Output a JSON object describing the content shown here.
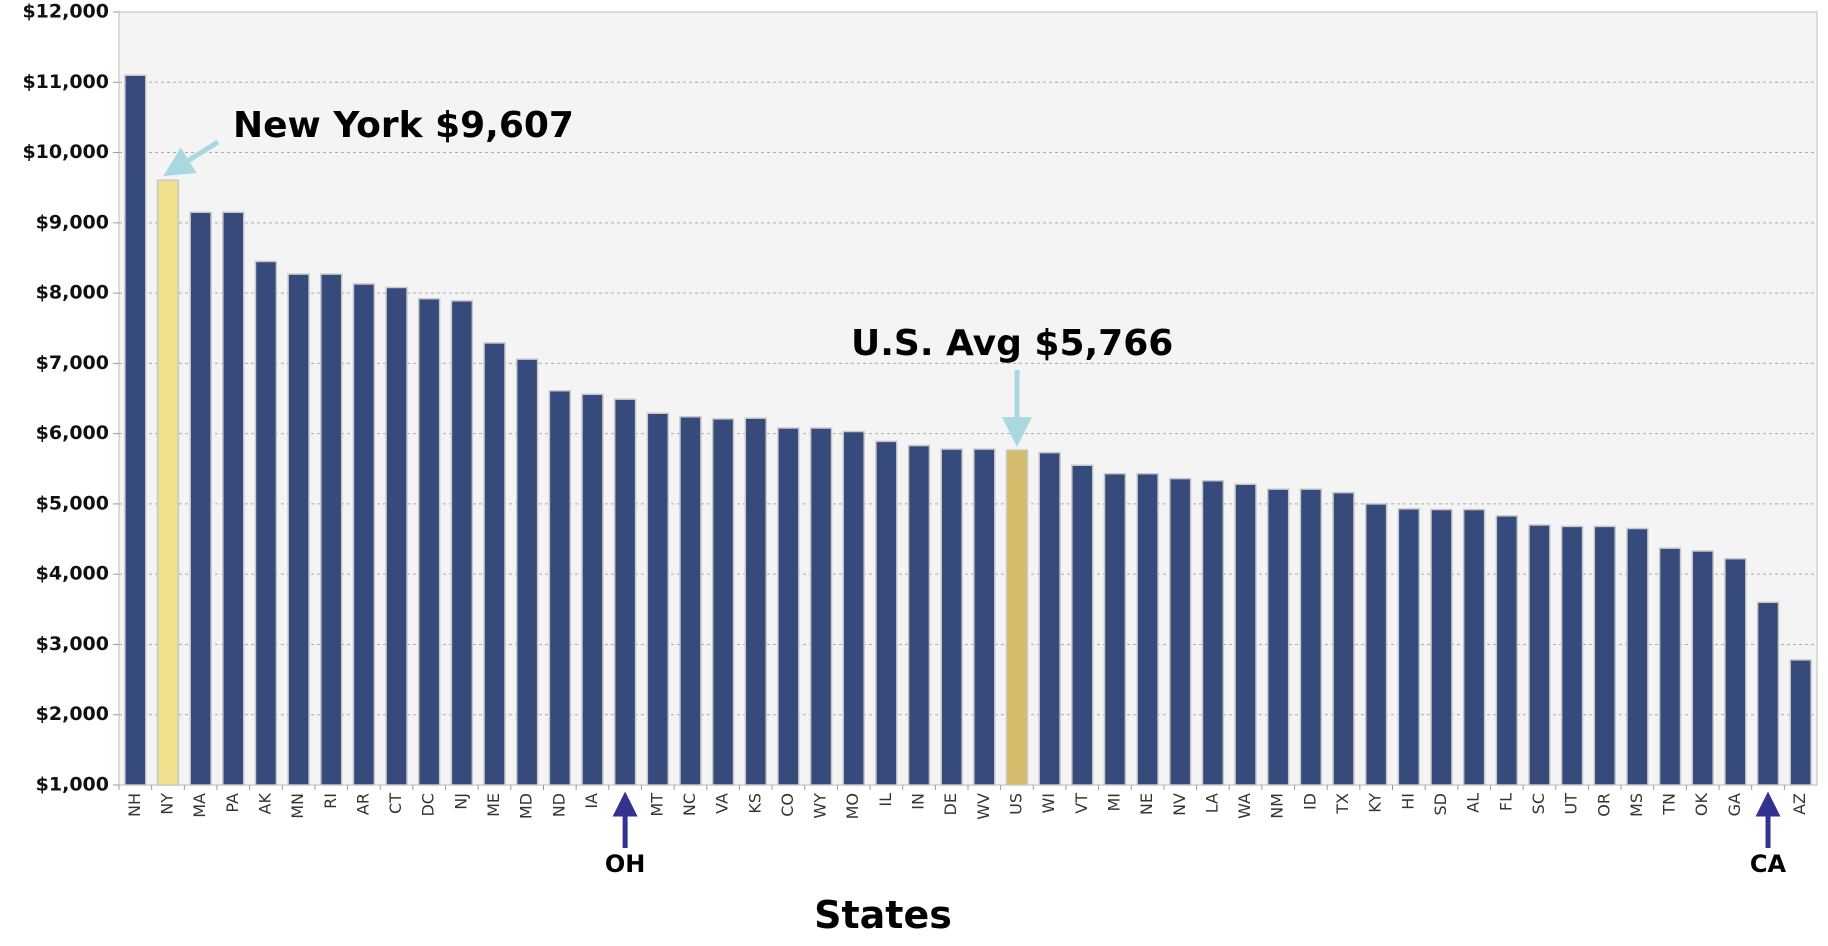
{
  "chart_data": {
    "type": "bar",
    "x_label": "States",
    "categories": [
      "NH",
      "NY",
      "MA",
      "PA",
      "AK",
      "MN",
      "RI",
      "AR",
      "CT",
      "DC",
      "NJ",
      "ME",
      "MD",
      "ND",
      "IA",
      null,
      "MT",
      "NC",
      "VA",
      "KS",
      "CO",
      "WY",
      "MO",
      "IL",
      "IN",
      "DE",
      "WV",
      "US",
      "WI",
      "VT",
      "MI",
      "NE",
      "NV",
      "LA",
      "WA",
      "NM",
      "ID",
      "TX",
      "KY",
      "HI",
      "SD",
      "AL",
      "FL",
      "SC",
      "UT",
      "OR",
      "MS",
      "TN",
      "OK",
      "GA",
      null,
      "AZ"
    ],
    "values": [
      11100,
      9607,
      9150,
      9150,
      8450,
      8270,
      8270,
      8130,
      8080,
      7920,
      7890,
      7290,
      7060,
      6610,
      6560,
      6490,
      6290,
      6240,
      6210,
      6220,
      6080,
      6080,
      6030,
      5890,
      5830,
      5780,
      5780,
      5766,
      5730,
      5550,
      5430,
      5430,
      5360,
      5330,
      5280,
      5210,
      5210,
      5160,
      5000,
      4930,
      4920,
      4920,
      4830,
      4700,
      4680,
      4680,
      4650,
      4370,
      4330,
      4220,
      3600,
      2780
    ],
    "color": "#364a7c",
    "highlight": {
      "NY": "#f0e08e",
      "US": "#d4bc6c"
    },
    "annotations": [
      "New York $9,607",
      "U.S. Avg $5,766",
      "OH",
      "CA"
    ],
    "ylim": [
      1000,
      12000
    ],
    "yticks": [
      {
        "value": 1000,
        "label": "$1,000"
      },
      {
        "value": 2000,
        "label": "$2,000"
      },
      {
        "value": 3000,
        "label": "$3,000"
      },
      {
        "value": 4000,
        "label": "$4,000"
      },
      {
        "value": 5000,
        "label": "$5,000"
      },
      {
        "value": 6000,
        "label": "$6,000"
      },
      {
        "value": 7000,
        "label": "$7,000"
      },
      {
        "value": 8000,
        "label": "$8,000"
      },
      {
        "value": 9000,
        "label": "$9,000"
      },
      {
        "value": 10000,
        "label": "$10,000"
      },
      {
        "value": 11000,
        "label": "$11,000"
      },
      {
        "value": 12000,
        "label": "$12,000"
      }
    ],
    "grid": true
  }
}
